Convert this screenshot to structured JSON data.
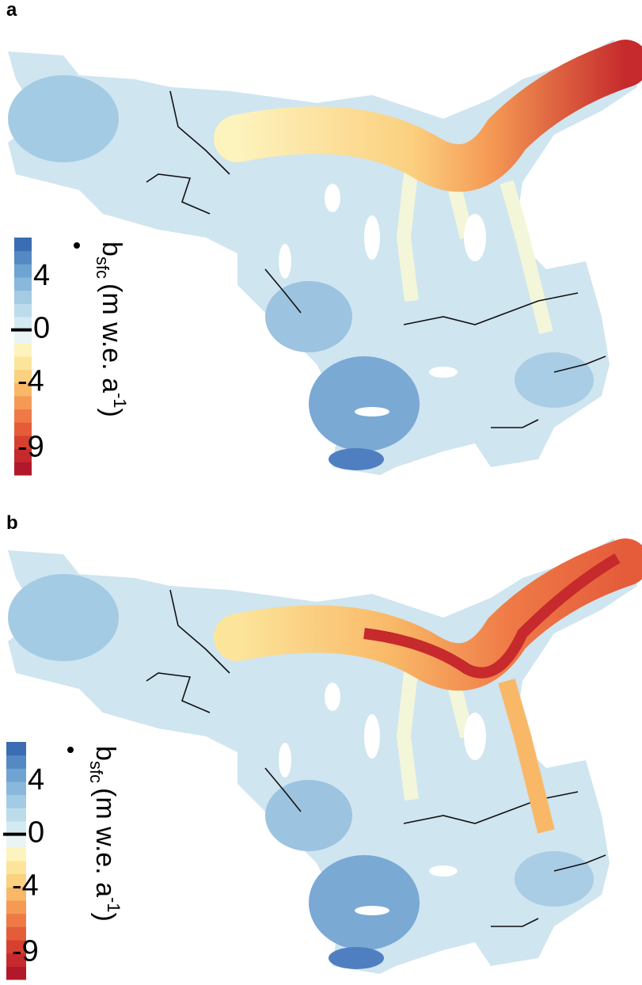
{
  "panels": [
    {
      "label": "a"
    },
    {
      "label": "b"
    }
  ],
  "colorbar": {
    "lim": [
      -11,
      7
    ],
    "ticks": [
      4,
      0,
      -4,
      -9
    ],
    "colors": [
      "#b2182b",
      "#c62a2c",
      "#d6402f",
      "#e45c3a",
      "#ef7a47",
      "#f59a55",
      "#f9b867",
      "#fbd07f",
      "#fce59b",
      "#fdf3bd",
      "#eaf5f3",
      "#d4eaf3",
      "#bcdcec",
      "#a3cbe4",
      "#8ab8db",
      "#6fa3d1",
      "#5489c3",
      "#3b6db2"
    ],
    "label": {
      "symbol": "b",
      "subscript": "sfc",
      "unit": "(m w.e.  a",
      "superscript": "-1",
      "close": ")"
    }
  }
}
